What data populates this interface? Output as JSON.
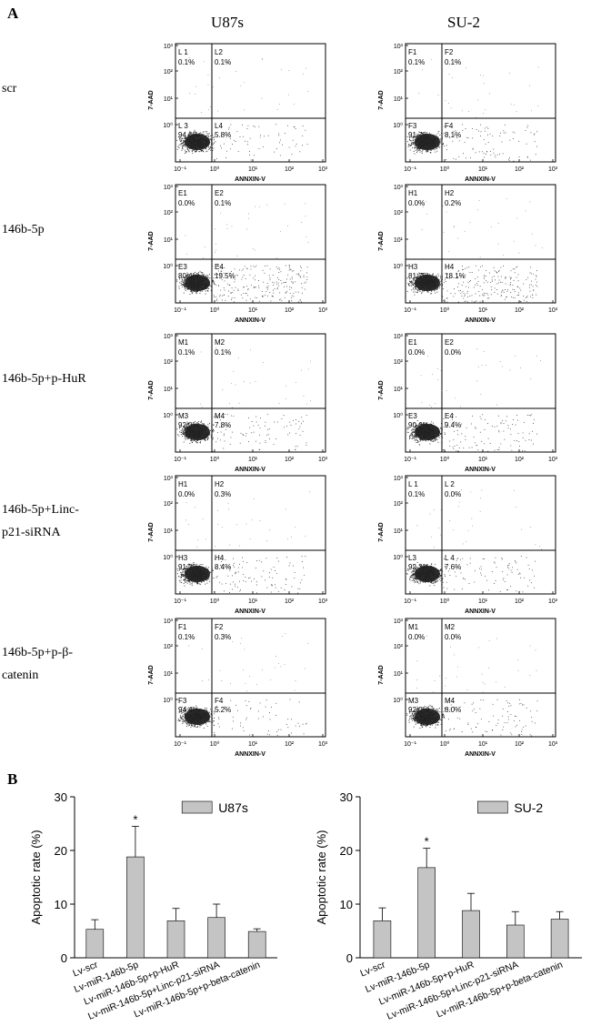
{
  "panel_a": {
    "label": "A",
    "columns": [
      "U87s",
      "SU-2"
    ],
    "row_labels": [
      [
        "scr"
      ],
      [
        "146b-5p"
      ],
      [
        "146b-5p+p-HuR"
      ],
      [
        "146b-5p+Linc-",
        "p21-siRNA"
      ],
      [
        "146b-5p+p-β-",
        "catenin"
      ]
    ],
    "x_axis_title": "ANNXIN-V",
    "y_axis_title": "7-AAD",
    "x_ticks": [
      "10⁻¹",
      "10⁰",
      "10¹",
      "10²",
      "10³"
    ],
    "y_ticks": [
      "10³",
      "10²",
      "10¹",
      "10⁰"
    ],
    "plots": [
      [
        {
          "quadrants": [
            "L 1",
            "L2",
            "L 3",
            "L4"
          ],
          "values": [
            "0.1%",
            "0.1%",
            "94.0%",
            "5.8%"
          ],
          "apoptotic": 5.8
        },
        {
          "quadrants": [
            "F1",
            "F2",
            "F3",
            "F4"
          ],
          "values": [
            "0.1%",
            "0.1%",
            "91.7%",
            "8.1%"
          ],
          "apoptotic": 8.1
        }
      ],
      [
        {
          "quadrants": [
            "E1",
            "E2",
            "E3",
            "E4"
          ],
          "values": [
            "0.0%",
            "0.1%",
            "80.4%",
            "19.5%"
          ],
          "apoptotic": 19.5
        },
        {
          "quadrants": [
            "H1",
            "H2",
            "H3",
            "H4"
          ],
          "values": [
            "0.0%",
            "0.2%",
            "81.7%",
            "18.1%"
          ],
          "apoptotic": 18.1
        }
      ],
      [
        {
          "quadrants": [
            "M1",
            "M2",
            "M3",
            "M4"
          ],
          "values": [
            "0.1%",
            "0.1%",
            "92.0%",
            "7.8%"
          ],
          "apoptotic": 7.8
        },
        {
          "quadrants": [
            "E1",
            "E2",
            "E3",
            "E4"
          ],
          "values": [
            "0.0%",
            "0.0%",
            "90.6%",
            "9.4%"
          ],
          "apoptotic": 9.4
        }
      ],
      [
        {
          "quadrants": [
            "H1",
            "H2",
            "H3",
            "H4"
          ],
          "values": [
            "0.0%",
            "0.3%",
            "91.3%",
            "8.4%"
          ],
          "apoptotic": 8.4
        },
        {
          "quadrants": [
            "L 1",
            "L 2",
            "L3",
            "L 4"
          ],
          "values": [
            "0.1%",
            "0.0%",
            "92.3%",
            "7.6%"
          ],
          "apoptotic": 7.6
        }
      ],
      [
        {
          "quadrants": [
            "F1",
            "F2",
            "F3",
            "F4"
          ],
          "values": [
            "0.1%",
            "0.3%",
            "94.4%",
            "5.2%"
          ],
          "apoptotic": 5.2
        },
        {
          "quadrants": [
            "M1",
            "M2",
            "M3",
            "M4"
          ],
          "values": [
            "0.0%",
            "0.0%",
            "92.0%",
            "8.0%"
          ],
          "apoptotic": 8.0
        }
      ]
    ]
  },
  "panel_b_label": "B",
  "chart_data": [
    {
      "type": "bar",
      "legend": "U87s",
      "ylabel": "Apoptotic rate (%)",
      "ylim": [
        0,
        30
      ],
      "yticks": [
        0,
        10,
        20,
        30
      ],
      "categories": [
        "Lv-scr",
        "Lv-miR-146b-5p",
        "Lv-miR-146b-5p+p-HuR",
        "Lv-miR-146b-5p+Linc-p21-siRNA",
        "Lv-miR-146b-5p+p-beta-catenin"
      ],
      "values": [
        5.3,
        18.8,
        6.9,
        7.5,
        4.9
      ],
      "errors": [
        1.8,
        5.7,
        2.3,
        2.5,
        0.5
      ],
      "significance": [
        "",
        "*",
        "",
        "",
        ""
      ],
      "legend_position": "top-right",
      "grid": false
    },
    {
      "type": "bar",
      "legend": "SU-2",
      "ylabel": "Apoptotic rate (%)",
      "ylim": [
        0,
        30
      ],
      "yticks": [
        0,
        10,
        20,
        30
      ],
      "categories": [
        "Lv-scr",
        "Lv-miR-146b-5p",
        "Lv-miR-146b-5p+p-HuR",
        "Lv-miR-146b-5p+Linc-p21-siRNA",
        "Lv-miR-146b-5p+p-beta-catenin"
      ],
      "values": [
        6.9,
        16.8,
        8.8,
        6.1,
        7.2
      ],
      "errors": [
        2.4,
        3.6,
        3.2,
        2.5,
        1.4
      ],
      "significance": [
        "",
        "*",
        "",
        "",
        ""
      ],
      "legend_position": "top-right",
      "grid": false
    }
  ],
  "colors": {
    "bar": "#c4c4c4",
    "axis": "#000000",
    "dots": "#222222"
  }
}
